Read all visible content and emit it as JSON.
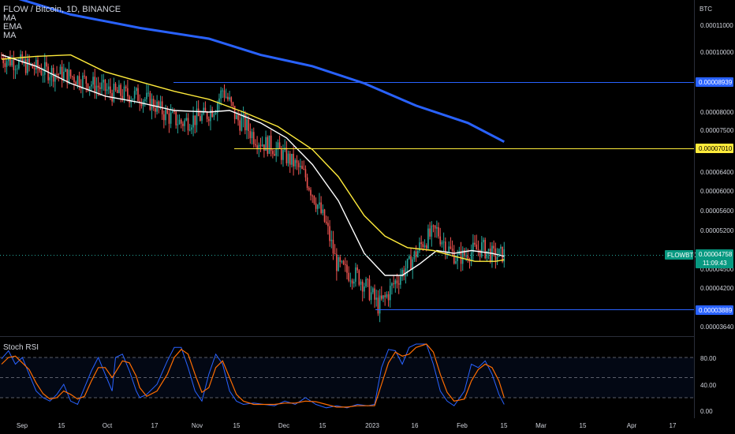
{
  "header": {
    "symbol_line": "FLOW / Bitcoin, 1D, BINANCE",
    "indicators": [
      "MA",
      "EMA",
      "MA"
    ]
  },
  "price_axis": {
    "currency": "BTC",
    "ticks": [
      "0.00011000",
      "0.00010000",
      "0.00008000",
      "0.00007500",
      "0.00006400",
      "0.00006000",
      "0.00005600",
      "0.00005200",
      "0.00004500",
      "0.00004200",
      "0.00003640"
    ]
  },
  "time_axis": {
    "ticks": [
      "Sep",
      "15",
      "Oct",
      "17",
      "Nov",
      "15",
      "Dec",
      "15",
      "2023",
      "16",
      "Feb",
      "15",
      "Mar",
      "15",
      "Apr",
      "17"
    ]
  },
  "levels": {
    "resistance_blue": {
      "value": "0.00008939",
      "color": "#2962ff"
    },
    "resistance_yellow": {
      "value": "0.00007010",
      "color": "#ffeb3b"
    },
    "support_blue": {
      "value": "0.00003889",
      "color": "#2962ff"
    }
  },
  "last_price": {
    "ticker": "FLOWBTC",
    "value": "0.00004758",
    "countdown": "11:09:43",
    "color": "#089981"
  },
  "rsi": {
    "title": "Stoch RSI",
    "ticks": [
      "80.00",
      "40.00",
      "0.00"
    ],
    "upper_band": 80,
    "lower_band": 20,
    "k_color": "#2962ff",
    "d_color": "#ff6d00"
  },
  "chart_data": {
    "type": "candlestick",
    "title": "FLOW / Bitcoin, 1D, BINANCE",
    "x_range": [
      "Sep",
      "Apr 17"
    ],
    "price_range": [
      3.55e-05,
      0.00012
    ],
    "close_path": [
      [
        0,
        9.8e-05
      ],
      [
        8,
        9.65e-05
      ],
      [
        16,
        9.5e-05
      ],
      [
        24,
        9.35e-05
      ],
      [
        32,
        9.25e-05
      ],
      [
        40,
        9.15e-05
      ],
      [
        48,
        9e-05
      ],
      [
        56,
        8.8e-05
      ],
      [
        64,
        8.6e-05
      ],
      [
        72,
        8.55e-05
      ],
      [
        80,
        8.5e-05
      ],
      [
        88,
        8.25e-05
      ],
      [
        96,
        7.9e-05
      ],
      [
        104,
        7.7e-05
      ],
      [
        110,
        7.8e-05
      ],
      [
        118,
        7.9e-05
      ],
      [
        124,
        8.2e-05
      ],
      [
        128,
        8.7e-05
      ],
      [
        132,
        8.3e-05
      ],
      [
        136,
        7.8e-05
      ],
      [
        140,
        7.7e-05
      ],
      [
        146,
        7.35e-05
      ],
      [
        152,
        7.15e-05
      ],
      [
        156,
        7.1e-05
      ],
      [
        162,
        6.9e-05
      ],
      [
        170,
        6.6e-05
      ],
      [
        176,
        6.3e-05
      ],
      [
        182,
        5.8e-05
      ],
      [
        188,
        5.3e-05
      ],
      [
        194,
        4.6e-05
      ],
      [
        200,
        4.45e-05
      ],
      [
        206,
        4.4e-05
      ],
      [
        212,
        4.2e-05
      ],
      [
        218,
        3.95e-05
      ],
      [
        222,
        4.05e-05
      ],
      [
        228,
        4.3e-05
      ],
      [
        236,
        4.6e-05
      ],
      [
        244,
        5e-05
      ],
      [
        252,
        5.2e-05
      ],
      [
        258,
        4.9e-05
      ],
      [
        264,
        4.7e-05
      ],
      [
        270,
        4.8e-05
      ],
      [
        278,
        4.9e-05
      ],
      [
        285,
        4.75e-05
      ],
      [
        291,
        4.78e-05
      ]
    ],
    "series": [
      {
        "name": "MA",
        "color": "#2962ff",
        "values": [
          [
            4,
            0.000121
          ],
          [
            40,
            0.000114
          ],
          [
            80,
            0.000109
          ],
          [
            120,
            0.000105
          ],
          [
            150,
            9.9e-05
          ],
          [
            180,
            9.5e-05
          ],
          [
            210,
            8.9e-05
          ],
          [
            240,
            8.2e-05
          ],
          [
            270,
            7.7e-05
          ],
          [
            291,
            7.2e-05
          ]
        ]
      },
      {
        "name": "EMA",
        "color": "#ffffff",
        "values": [
          [
            0,
            9.9e-05
          ],
          [
            20,
            9.5e-05
          ],
          [
            40,
            8.9e-05
          ],
          [
            60,
            8.5e-05
          ],
          [
            80,
            8.3e-05
          ],
          [
            100,
            8.05e-05
          ],
          [
            120,
            8e-05
          ],
          [
            132,
            8.05e-05
          ],
          [
            150,
            7.7e-05
          ],
          [
            165,
            7.3e-05
          ],
          [
            180,
            6.6e-05
          ],
          [
            195,
            5.8e-05
          ],
          [
            210,
            4.8e-05
          ],
          [
            222,
            4.4e-05
          ],
          [
            232,
            4.4e-05
          ],
          [
            242,
            4.6e-05
          ],
          [
            252,
            4.85e-05
          ],
          [
            262,
            4.8e-05
          ],
          [
            272,
            4.85e-05
          ],
          [
            284,
            4.8e-05
          ],
          [
            291,
            4.75e-05
          ]
        ]
      },
      {
        "name": "MA",
        "color": "#ffeb3b",
        "values": [
          [
            0,
            9.75e-05
          ],
          [
            20,
            9.85e-05
          ],
          [
            40,
            9.9e-05
          ],
          [
            60,
            9.3e-05
          ],
          [
            80,
            8.95e-05
          ],
          [
            100,
            8.65e-05
          ],
          [
            120,
            8.4e-05
          ],
          [
            140,
            8e-05
          ],
          [
            160,
            7.6e-05
          ],
          [
            180,
            7e-05
          ],
          [
            195,
            6.3e-05
          ],
          [
            210,
            5.5e-05
          ],
          [
            222,
            5.1e-05
          ],
          [
            235,
            4.9e-05
          ],
          [
            250,
            4.85e-05
          ],
          [
            262,
            4.75e-05
          ],
          [
            274,
            4.65e-05
          ],
          [
            286,
            4.65e-05
          ],
          [
            291,
            4.68e-05
          ]
        ]
      }
    ],
    "stoch_rsi": {
      "k": [
        [
          0,
          78
        ],
        [
          4,
          90
        ],
        [
          8,
          70
        ],
        [
          12,
          80
        ],
        [
          16,
          55
        ],
        [
          20,
          30
        ],
        [
          24,
          20
        ],
        [
          28,
          15
        ],
        [
          32,
          25
        ],
        [
          36,
          40
        ],
        [
          40,
          15
        ],
        [
          44,
          10
        ],
        [
          48,
          35
        ],
        [
          52,
          60
        ],
        [
          56,
          80
        ],
        [
          60,
          55
        ],
        [
          64,
          30
        ],
        [
          66,
          80
        ],
        [
          70,
          85
        ],
        [
          74,
          60
        ],
        [
          78,
          30
        ],
        [
          80,
          20
        ],
        [
          84,
          25
        ],
        [
          90,
          40
        ],
        [
          96,
          75
        ],
        [
          100,
          95
        ],
        [
          104,
          95
        ],
        [
          108,
          65
        ],
        [
          112,
          30
        ],
        [
          116,
          15
        ],
        [
          120,
          55
        ],
        [
          124,
          85
        ],
        [
          128,
          70
        ],
        [
          132,
          30
        ],
        [
          136,
          15
        ],
        [
          140,
          10
        ],
        [
          146,
          12
        ],
        [
          152,
          10
        ],
        [
          158,
          8
        ],
        [
          164,
          15
        ],
        [
          170,
          10
        ],
        [
          176,
          20
        ],
        [
          182,
          10
        ],
        [
          188,
          5
        ],
        [
          194,
          8
        ],
        [
          200,
          5
        ],
        [
          206,
          10
        ],
        [
          212,
          8
        ],
        [
          216,
          10
        ],
        [
          220,
          65
        ],
        [
          224,
          92
        ],
        [
          228,
          90
        ],
        [
          232,
          70
        ],
        [
          236,
          95
        ],
        [
          240,
          100
        ],
        [
          246,
          100
        ],
        [
          250,
          70
        ],
        [
          254,
          30
        ],
        [
          258,
          15
        ],
        [
          262,
          8
        ],
        [
          268,
          30
        ],
        [
          272,
          70
        ],
        [
          276,
          65
        ],
        [
          280,
          75
        ],
        [
          284,
          55
        ],
        [
          288,
          25
        ],
        [
          291,
          10
        ]
      ],
      "d": [
        [
          0,
          70
        ],
        [
          4,
          80
        ],
        [
          8,
          82
        ],
        [
          12,
          72
        ],
        [
          16,
          62
        ],
        [
          20,
          42
        ],
        [
          24,
          26
        ],
        [
          28,
          18
        ],
        [
          32,
          20
        ],
        [
          36,
          30
        ],
        [
          40,
          25
        ],
        [
          44,
          18
        ],
        [
          48,
          22
        ],
        [
          52,
          45
        ],
        [
          56,
          65
        ],
        [
          60,
          65
        ],
        [
          64,
          50
        ],
        [
          66,
          58
        ],
        [
          70,
          75
        ],
        [
          74,
          72
        ],
        [
          78,
          52
        ],
        [
          80,
          35
        ],
        [
          84,
          22
        ],
        [
          90,
          30
        ],
        [
          96,
          55
        ],
        [
          100,
          80
        ],
        [
          104,
          92
        ],
        [
          108,
          85
        ],
        [
          112,
          55
        ],
        [
          116,
          28
        ],
        [
          120,
          35
        ],
        [
          124,
          65
        ],
        [
          128,
          75
        ],
        [
          132,
          50
        ],
        [
          136,
          25
        ],
        [
          140,
          15
        ],
        [
          146,
          10
        ],
        [
          152,
          10
        ],
        [
          158,
          10
        ],
        [
          164,
          12
        ],
        [
          170,
          12
        ],
        [
          176,
          15
        ],
        [
          182,
          14
        ],
        [
          188,
          10
        ],
        [
          194,
          6
        ],
        [
          200,
          6
        ],
        [
          206,
          8
        ],
        [
          212,
          8
        ],
        [
          216,
          8
        ],
        [
          220,
          40
        ],
        [
          224,
          72
        ],
        [
          228,
          88
        ],
        [
          232,
          82
        ],
        [
          236,
          85
        ],
        [
          240,
          95
        ],
        [
          246,
          100
        ],
        [
          250,
          88
        ],
        [
          254,
          55
        ],
        [
          258,
          28
        ],
        [
          262,
          15
        ],
        [
          268,
          18
        ],
        [
          272,
          45
        ],
        [
          276,
          62
        ],
        [
          280,
          70
        ],
        [
          284,
          65
        ],
        [
          288,
          45
        ],
        [
          291,
          20
        ]
      ]
    }
  }
}
